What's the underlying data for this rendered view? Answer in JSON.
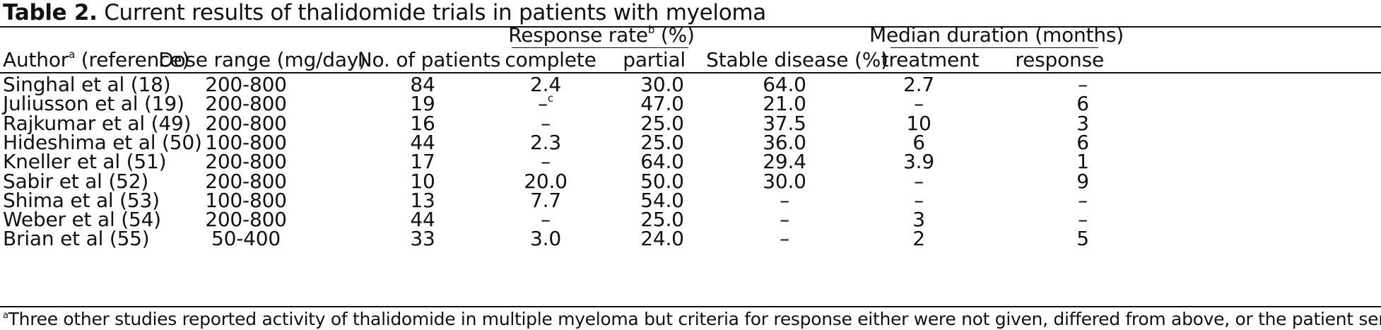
{
  "table": {
    "caption_label": "Table 2.",
    "caption_text": " Current results of thalidomide trials in patients with myeloma",
    "group_headers": {
      "response_rate": "Response rate",
      "response_rate_sup": "b",
      "response_rate_unit": " (%)",
      "median_duration": "Median duration (months)"
    },
    "columns": {
      "author": "Author",
      "author_sup": "a",
      "author_suffix": " (reference)",
      "dose": "Dose range (mg/day)",
      "patients": "No. of patients",
      "complete": "complete",
      "partial": "partial",
      "stable": "Stable disease (%)",
      "treatment": "treatment",
      "response": "response"
    },
    "rows": [
      {
        "author": "Singhal et al (18)",
        "dose": "200-800",
        "patients": "84",
        "complete": "2.4",
        "complete_sup": "",
        "partial": "30.0",
        "stable": "64.0",
        "treatment": "2.7",
        "response": "–"
      },
      {
        "author": "Juliusson et al (19)",
        "dose": "200-800",
        "patients": "19",
        "complete": "–",
        "complete_sup": "c",
        "partial": "47.0",
        "stable": "21.0",
        "treatment": "–",
        "response": "6"
      },
      {
        "author": "Rajkumar et al (49)",
        "dose": "200-800",
        "patients": "16",
        "complete": "–",
        "complete_sup": "",
        "partial": "25.0",
        "stable": "37.5",
        "treatment": "10",
        "response": "3"
      },
      {
        "author": "Hideshima et al (50)",
        "dose": "100-800",
        "patients": "44",
        "complete": "2.3",
        "complete_sup": "",
        "partial": "25.0",
        "stable": "36.0",
        "treatment": "6",
        "response": "6"
      },
      {
        "author": "Kneller et al (51)",
        "dose": "200-800",
        "patients": "17",
        "complete": "–",
        "complete_sup": "",
        "partial": "64.0",
        "stable": "29.4",
        "treatment": "3.9",
        "response": "1"
      },
      {
        "author": "Sabir et al (52)",
        "dose": "200-800",
        "patients": "10",
        "complete": "20.0",
        "complete_sup": "",
        "partial": "50.0",
        "stable": "30.0",
        "treatment": "–",
        "response": "9"
      },
      {
        "author": "Shima et al (53)",
        "dose": "100-800",
        "patients": "13",
        "complete": "7.7",
        "complete_sup": "",
        "partial": "54.0",
        "stable": "–",
        "treatment": "–",
        "response": "–"
      },
      {
        "author": "Weber et al (54)",
        "dose": "200-800",
        "patients": "44",
        "complete": "–",
        "complete_sup": "",
        "partial": "25.0",
        "stable": "–",
        "treatment": "3",
        "response": "–"
      },
      {
        "author": "Brian et al (55)",
        "dose": "50-400",
        "patients": "33",
        "complete": "3.0",
        "complete_sup": "",
        "partial": "24.0",
        "stable": "–",
        "treatment": "2",
        "response": "5"
      }
    ],
    "footnote_sup": "a",
    "footnote_text": "Three other studies reported activity of thalidomide in multiple myeloma but criteria for response either were not given, differed from above, or the patient series one"
  }
}
